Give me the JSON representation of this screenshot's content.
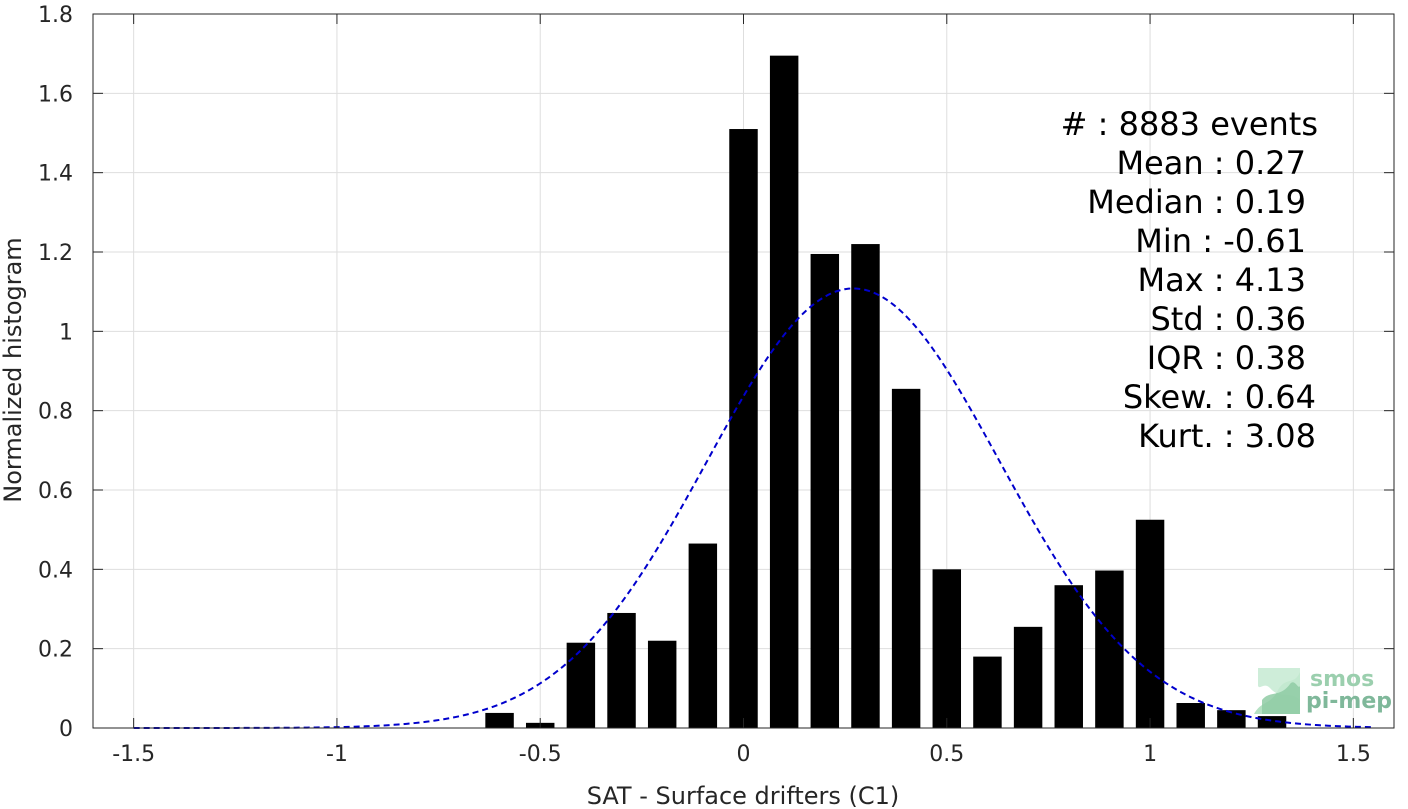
{
  "chart_data": {
    "type": "bar",
    "xlabel": "SAT - Surface drifters (C1)",
    "ylabel": "Normalized histogram",
    "xlim": [
      -1.6,
      1.6
    ],
    "ylim": [
      0,
      1.8
    ],
    "grid": true,
    "x_ticks": [
      -1.5,
      -1,
      -0.5,
      0,
      0.5,
      1,
      1.5
    ],
    "x_tick_labels": [
      "-1.5",
      "-1",
      "-0.5",
      "0",
      "0.5",
      "1",
      "1.5"
    ],
    "y_ticks": [
      0,
      0.2,
      0.4,
      0.6,
      0.8,
      1,
      1.2,
      1.4,
      1.6,
      1.8
    ],
    "y_tick_labels": [
      "0",
      "0.2",
      "0.4",
      "0.6",
      "0.8",
      "1",
      "1.2",
      "1.4",
      "1.6",
      "1.8"
    ],
    "bar_width": 0.07,
    "bar_color": "#000000",
    "bars": [
      {
        "x": -0.6,
        "y": 0.038
      },
      {
        "x": -0.5,
        "y": 0.013
      },
      {
        "x": -0.4,
        "y": 0.215
      },
      {
        "x": -0.3,
        "y": 0.29
      },
      {
        "x": -0.2,
        "y": 0.22
      },
      {
        "x": -0.1,
        "y": 0.465
      },
      {
        "x": 0.0,
        "y": 1.51
      },
      {
        "x": 0.1,
        "y": 1.695
      },
      {
        "x": 0.2,
        "y": 1.195
      },
      {
        "x": 0.3,
        "y": 1.22
      },
      {
        "x": 0.4,
        "y": 0.855
      },
      {
        "x": 0.5,
        "y": 0.4
      },
      {
        "x": 0.6,
        "y": 0.18
      },
      {
        "x": 0.7,
        "y": 0.255
      },
      {
        "x": 0.8,
        "y": 0.36
      },
      {
        "x": 0.9,
        "y": 0.397
      },
      {
        "x": 1.0,
        "y": 0.525
      },
      {
        "x": 1.1,
        "y": 0.063
      },
      {
        "x": 1.2,
        "y": 0.045
      },
      {
        "x": 1.3,
        "y": 0.03
      }
    ],
    "fit_curve": {
      "style": "dashed",
      "color": "#0000cc",
      "mean": 0.27,
      "std": 0.36,
      "x_range": [
        -1.5,
        1.55
      ]
    },
    "stats": [
      "#  : 8883 events",
      "Mean : 0.27",
      "Median : 0.19",
      "Min : -0.61",
      "Max : 4.13",
      "Std : 0.36",
      "IQR : 0.38",
      "Skew. : 0.64",
      "Kurt. : 3.08"
    ],
    "logo": {
      "line1": "smos",
      "line2": "pi-mep",
      "color1": "#9bcfae",
      "color2": "#7fb89a"
    }
  }
}
